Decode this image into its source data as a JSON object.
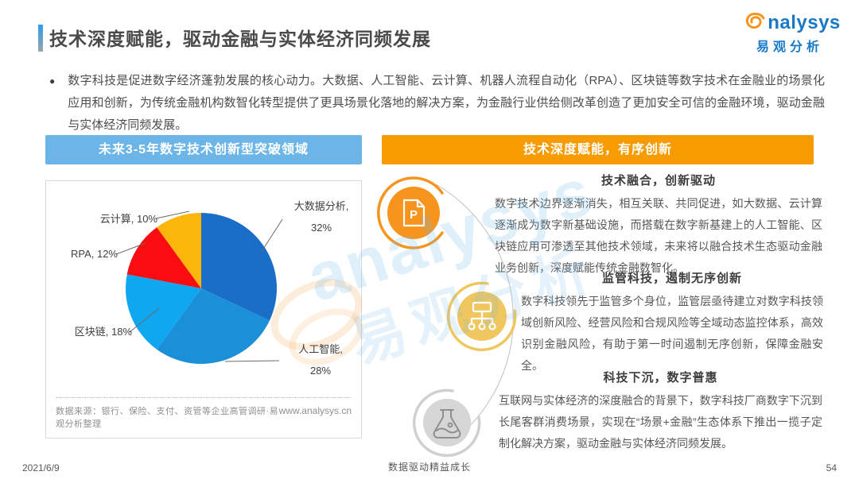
{
  "page": {
    "title": "技术深度赋能，驱动金融与实体经济同频发展",
    "bullet_marker": "●",
    "bullet": "数字科技是促进数字经济蓬勃发展的核心动力。大数据、人工智能、云计算、机器人流程自动化（RPA）、区块链等数字技术在金融业的场景化应用和创新，为传统金融机构数智化转型提供了更具场景化落地的解决方案，为金融行业供给侧改革创造了更加安全可信的金融环境，驱动金融与实体经济同频发展。",
    "footer": {
      "date": "2021/6/9",
      "slogan": "数据驱动精益成长",
      "page_number": "54"
    }
  },
  "logo": {
    "name": "analysys",
    "name_rest": "nalysys",
    "cn": "易观分析"
  },
  "watermark": {
    "latin": "analysys",
    "cn": "易观分析"
  },
  "left_panel": {
    "banner": "未来3-5年数字技术创新型突破领域",
    "source": "数据来源：银行、保险、支付、资管等企业高管调研·易观分析整理",
    "website": "www.analysys.cn"
  },
  "right_panel": {
    "banner": "技术深度赋能，有序创新",
    "sections": [
      {
        "icon": "document-p-icon",
        "title": "技术融合，创新驱动",
        "body": "数字技术边界逐渐消失，相互关联、共同促进，如大数据、云计算逐渐成为数字新基础设施，而搭载在数字新基建上的人工智能、区块链应用可渗透至其他技术领域，未来将以融合技术生态驱动金融业务创新，深度赋能传统金融数智化。"
      },
      {
        "icon": "org-chart-icon",
        "title": "监管科技，遏制无序创新",
        "body": "数字科技领先于监管多个身位，监管层亟待建立对数字科技领域创新风险、经营风险和合规风险等全域动态监控体系，高效识别金融风险，有助于第一时间遏制无序创新，保障金融安全。"
      },
      {
        "icon": "flask-icon",
        "title": "科技下沉，数字普惠",
        "body": "互联网与实体经济的深度融合的背景下，数字科技厂商数字下沉到长尾客群消费场景，实现在“场景+金融”生态体系下推出一揽子定制化解决方案，驱动金融与实体经济同频发展。"
      }
    ]
  },
  "chart_data": {
    "type": "pie",
    "title": "未来3-5年数字技术创新型突破领域",
    "labels": [
      "大数据分析",
      "人工智能",
      "区块链",
      "RPA",
      "云计算"
    ],
    "values": [
      32,
      28,
      18,
      12,
      10
    ],
    "unit": "%",
    "colors": [
      "#1B6EC8",
      "#1A90D8",
      "#0FA7F0",
      "#F90D10",
      "#FBB60B"
    ],
    "start_angle_deg": 0,
    "direction": "clockwise",
    "legend_position": "callout-labels"
  },
  "colors": {
    "accent_bar": "#2B9EE8",
    "banner_blue": "#6CB5E8",
    "banner_orange": "#F89B00",
    "logo_blue": "#1779C8",
    "logo_orange": "#F7941D",
    "icon_orange": "#F7941D",
    "icon_gold": "#F0C75E",
    "icon_gray": "#D6D6D6"
  }
}
